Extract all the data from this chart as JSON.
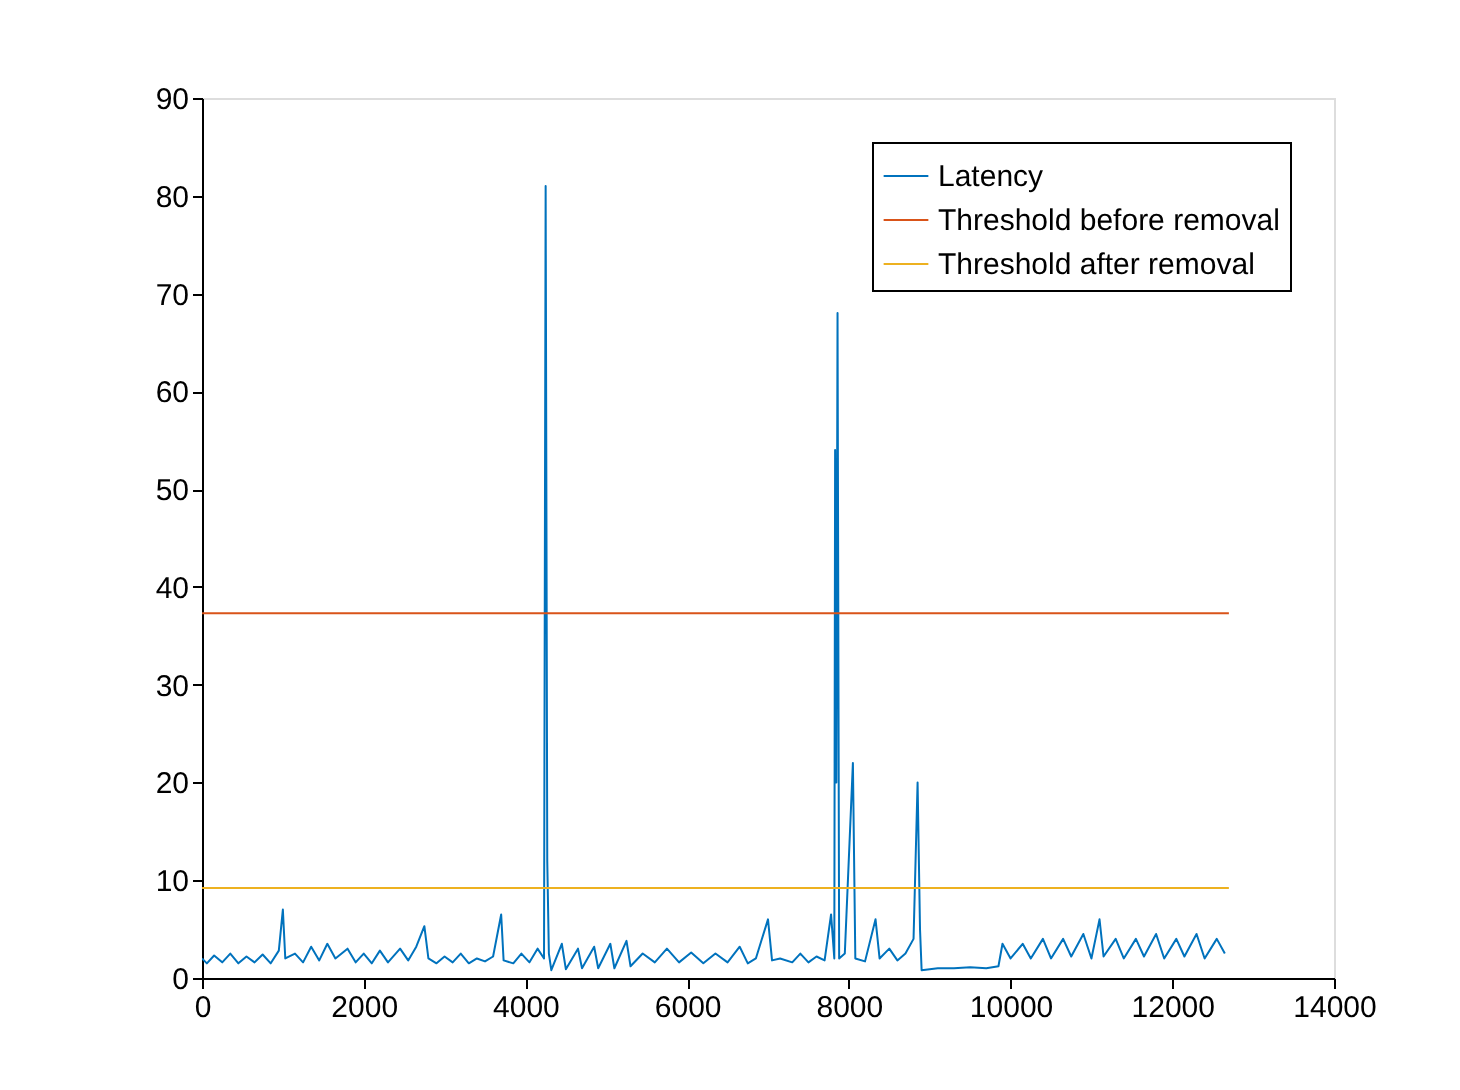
{
  "chart_data": {
    "type": "line",
    "xlim": [
      0,
      14000
    ],
    "ylim": [
      0,
      90
    ],
    "xticks": [
      0,
      2000,
      4000,
      6000,
      8000,
      10000,
      12000,
      14000
    ],
    "yticks": [
      0,
      10,
      20,
      30,
      40,
      50,
      60,
      70,
      80,
      90
    ],
    "grid": false,
    "legend": "top right",
    "line_style": "solid",
    "marker": "none",
    "series": [
      {
        "name": "Latency",
        "color": "#0072bd",
        "x": [
          0,
          60,
          150,
          250,
          350,
          450,
          550,
          650,
          750,
          850,
          950,
          1000,
          1030,
          1150,
          1250,
          1350,
          1450,
          1550,
          1650,
          1800,
          1900,
          2000,
          2100,
          2200,
          2300,
          2450,
          2550,
          2650,
          2750,
          2800,
          2900,
          3000,
          3100,
          3200,
          3300,
          3400,
          3500,
          3600,
          3700,
          3730,
          3850,
          3950,
          4050,
          4150,
          4230,
          4250,
          4270,
          4290,
          4320,
          4450,
          4500,
          4650,
          4700,
          4850,
          4900,
          5050,
          5100,
          5250,
          5300,
          5450,
          5600,
          5750,
          5900,
          6050,
          6200,
          6350,
          6500,
          6650,
          6750,
          6850,
          7000,
          7050,
          7150,
          7300,
          7400,
          7500,
          7600,
          7700,
          7780,
          7820,
          7830,
          7845,
          7860,
          7880,
          7950,
          8050,
          8080,
          8200,
          8330,
          8380,
          8500,
          8600,
          8700,
          8800,
          8850,
          8880,
          8900,
          9100,
          9300,
          9500,
          9700,
          9850,
          9900,
          10000,
          10150,
          10250,
          10400,
          10500,
          10650,
          10750,
          10900,
          11000,
          11100,
          11150,
          11300,
          11400,
          11550,
          11650,
          11800,
          11900,
          12050,
          12150,
          12300,
          12400,
          12550,
          12650
        ],
        "values": [
          2,
          1.5,
          2.3,
          1.6,
          2.5,
          1.5,
          2.2,
          1.6,
          2.4,
          1.5,
          2.8,
          7,
          2,
          2.5,
          1.6,
          3.2,
          1.8,
          3.5,
          2,
          3,
          1.6,
          2.5,
          1.5,
          2.8,
          1.6,
          3,
          1.8,
          3.2,
          5.3,
          2,
          1.5,
          2.2,
          1.6,
          2.5,
          1.5,
          2,
          1.7,
          2.2,
          6.5,
          1.8,
          1.5,
          2.5,
          1.6,
          3,
          2,
          81,
          12,
          2.5,
          0.8,
          3.5,
          0.9,
          3,
          1,
          3.2,
          1,
          3.5,
          1,
          3.8,
          1.2,
          2.5,
          1.6,
          3,
          1.6,
          2.6,
          1.5,
          2.5,
          1.6,
          3.2,
          1.5,
          2,
          6,
          1.8,
          2,
          1.6,
          2.5,
          1.6,
          2.2,
          1.8,
          6.5,
          2,
          54,
          20,
          68,
          2,
          2.5,
          22,
          2,
          1.7,
          6,
          2,
          3,
          1.8,
          2.5,
          4,
          20,
          5,
          0.8,
          1,
          1,
          1.1,
          1,
          1.2,
          3.5,
          2,
          3.5,
          2,
          4,
          2,
          4,
          2.2,
          4.5,
          2,
          6,
          2.2,
          4,
          2,
          4,
          2.2,
          4.5,
          2,
          4,
          2.2,
          4.5,
          2,
          4,
          2.5
        ]
      },
      {
        "name": "Threshold before removal",
        "color": "#d95319",
        "x": [
          1,
          12700
        ],
        "values": [
          37.3,
          37.3
        ]
      },
      {
        "name": "Threshold after removal",
        "color": "#edb120",
        "x": [
          1,
          12700
        ],
        "values": [
          9.2,
          9.2
        ]
      }
    ]
  }
}
